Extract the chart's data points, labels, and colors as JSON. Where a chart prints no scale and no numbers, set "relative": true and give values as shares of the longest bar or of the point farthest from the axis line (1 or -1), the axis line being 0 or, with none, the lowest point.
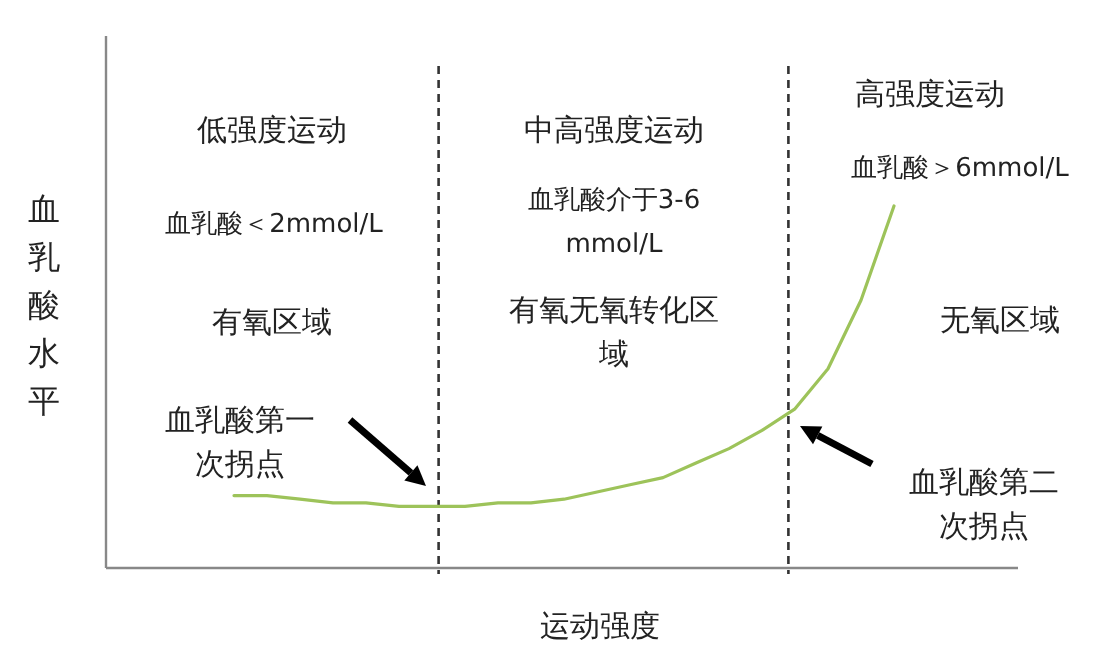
{
  "chart_data": {
    "type": "line",
    "relative": true,
    "ylabel": "血乳酸水平",
    "xlabel": "运动强度",
    "categories": [
      null,
      null,
      null,
      null,
      null,
      null,
      null,
      null,
      null,
      null,
      null,
      null,
      null,
      null,
      null,
      null,
      null,
      null,
      null,
      null,
      null
    ],
    "series": [
      {
        "color": "#9dc35a",
        "values": [
          0.2,
          0.2,
          0.19,
          0.18,
          0.18,
          0.17,
          0.17,
          0.17,
          0.18,
          0.18,
          0.19,
          0.21,
          0.23,
          0.25,
          0.29,
          0.33,
          0.38,
          0.44,
          0.55,
          0.74,
          1
        ]
      }
    ],
    "marker": "none",
    "line_style": "solid",
    "annotations": [
      "低强度运动",
      "血乳酸＜2mmol/L",
      "有氧区域",
      "血乳酸第一次拐点",
      "中高强度运动",
      "血乳酸介于3-6\nmmol/L",
      "有氧无氧转化区域",
      "高强度运动",
      "血乳酸＞6mmol/L",
      "无氧区域",
      "血乳酸第二次拐点"
    ]
  }
}
